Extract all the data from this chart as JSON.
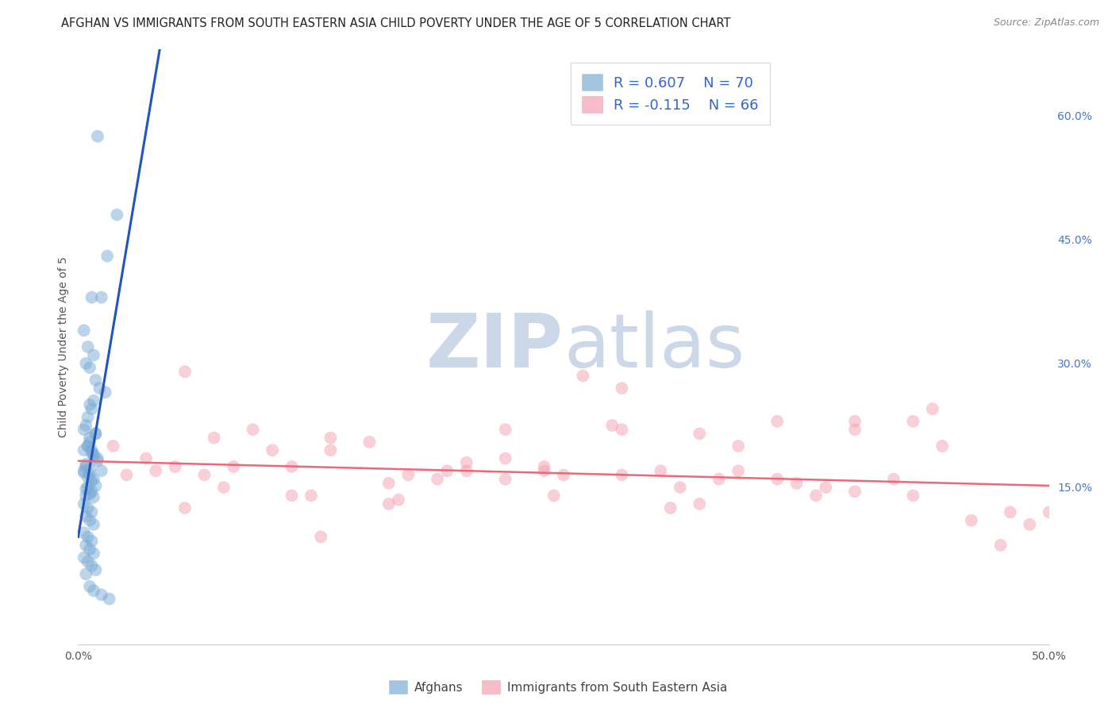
{
  "title": "AFGHAN VS IMMIGRANTS FROM SOUTH EASTERN ASIA CHILD POVERTY UNDER THE AGE OF 5 CORRELATION CHART",
  "source": "Source: ZipAtlas.com",
  "ylabel": "Child Poverty Under the Age of 5",
  "xlim": [
    0.0,
    0.5
  ],
  "ylim": [
    -0.04,
    0.68
  ],
  "xtick_positions": [
    0.0,
    0.1,
    0.2,
    0.3,
    0.4,
    0.5
  ],
  "xticklabels": [
    "0.0%",
    "",
    "",
    "",
    "",
    "50.0%"
  ],
  "yticks_right": [
    0.0,
    0.15,
    0.3,
    0.45,
    0.6
  ],
  "yticklabels_right": [
    "",
    "15.0%",
    "30.0%",
    "45.0%",
    "60.0%"
  ],
  "background_color": "#ffffff",
  "grid_color": "#d0d0d0",
  "title_fontsize": 11,
  "axis_label_fontsize": 10,
  "tick_fontsize": 10,
  "legend_label1": "Afghans",
  "legend_label2": "Immigrants from South Eastern Asia",
  "blue_color": "#7aabd4",
  "pink_color": "#f4a0b0",
  "blue_line_color": "#2255bb",
  "pink_line_color": "#ee6677",
  "blue_R": 0.607,
  "blue_N": 70,
  "pink_R": -0.115,
  "pink_N": 66,
  "watermark_zip": "ZIP",
  "watermark_atlas": "atlas",
  "watermark_color": "#ccd8e8",
  "blue_scatter_x": [
    0.01,
    0.02,
    0.015,
    0.007,
    0.003,
    0.005,
    0.008,
    0.004,
    0.006,
    0.012,
    0.009,
    0.011,
    0.014,
    0.008,
    0.006,
    0.007,
    0.005,
    0.004,
    0.003,
    0.009,
    0.006,
    0.005,
    0.007,
    0.008,
    0.01,
    0.004,
    0.003,
    0.006,
    0.008,
    0.012,
    0.005,
    0.007,
    0.004,
    0.009,
    0.006,
    0.005,
    0.003,
    0.007,
    0.008,
    0.01,
    0.004,
    0.006,
    0.003,
    0.005,
    0.007,
    0.009,
    0.004,
    0.006,
    0.008,
    0.003,
    0.005,
    0.007,
    0.004,
    0.006,
    0.008,
    0.003,
    0.005,
    0.007,
    0.004,
    0.006,
    0.008,
    0.003,
    0.005,
    0.007,
    0.009,
    0.004,
    0.006,
    0.008,
    0.012,
    0.016
  ],
  "blue_scatter_y": [
    0.575,
    0.48,
    0.43,
    0.38,
    0.34,
    0.32,
    0.31,
    0.3,
    0.295,
    0.38,
    0.28,
    0.27,
    0.265,
    0.255,
    0.25,
    0.245,
    0.235,
    0.225,
    0.22,
    0.215,
    0.205,
    0.2,
    0.195,
    0.19,
    0.185,
    0.175,
    0.17,
    0.165,
    0.16,
    0.17,
    0.15,
    0.145,
    0.14,
    0.215,
    0.21,
    0.2,
    0.195,
    0.192,
    0.188,
    0.182,
    0.178,
    0.172,
    0.168,
    0.162,
    0.158,
    0.152,
    0.148,
    0.142,
    0.138,
    0.13,
    0.125,
    0.12,
    0.115,
    0.11,
    0.105,
    0.095,
    0.09,
    0.085,
    0.08,
    0.075,
    0.07,
    0.065,
    0.06,
    0.055,
    0.05,
    0.045,
    0.03,
    0.025,
    0.02,
    0.015
  ],
  "pink_scatter_x": [
    0.018,
    0.035,
    0.055,
    0.07,
    0.09,
    0.11,
    0.13,
    0.15,
    0.17,
    0.2,
    0.22,
    0.24,
    0.26,
    0.28,
    0.3,
    0.32,
    0.34,
    0.36,
    0.38,
    0.4,
    0.42,
    0.445,
    0.49,
    0.025,
    0.05,
    0.075,
    0.1,
    0.13,
    0.16,
    0.19,
    0.22,
    0.25,
    0.28,
    0.31,
    0.34,
    0.37,
    0.4,
    0.43,
    0.46,
    0.04,
    0.08,
    0.12,
    0.16,
    0.2,
    0.24,
    0.28,
    0.32,
    0.36,
    0.4,
    0.44,
    0.48,
    0.055,
    0.11,
    0.165,
    0.22,
    0.275,
    0.33,
    0.385,
    0.43,
    0.475,
    0.5,
    0.065,
    0.125,
    0.185,
    0.245,
    0.305
  ],
  "pink_scatter_y": [
    0.2,
    0.185,
    0.29,
    0.21,
    0.22,
    0.175,
    0.195,
    0.205,
    0.165,
    0.18,
    0.22,
    0.175,
    0.285,
    0.27,
    0.17,
    0.215,
    0.2,
    0.16,
    0.14,
    0.145,
    0.16,
    0.2,
    0.105,
    0.165,
    0.175,
    0.15,
    0.195,
    0.21,
    0.155,
    0.17,
    0.16,
    0.165,
    0.22,
    0.15,
    0.17,
    0.155,
    0.23,
    0.14,
    0.11,
    0.17,
    0.175,
    0.14,
    0.13,
    0.17,
    0.17,
    0.165,
    0.13,
    0.23,
    0.22,
    0.245,
    0.12,
    0.125,
    0.14,
    0.135,
    0.185,
    0.225,
    0.16,
    0.15,
    0.23,
    0.08,
    0.12,
    0.165,
    0.09,
    0.16,
    0.14,
    0.125
  ],
  "blue_line_x0": 0.0,
  "blue_line_y0": 0.09,
  "blue_line_x1": 0.042,
  "blue_line_y1": 0.68,
  "pink_line_x0": 0.0,
  "pink_line_y0": 0.182,
  "pink_line_x1": 0.5,
  "pink_line_y1": 0.152
}
